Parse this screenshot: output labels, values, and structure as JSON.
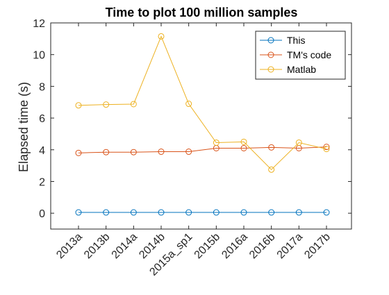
{
  "chart_data": {
    "type": "line",
    "title": "Time to plot 100 million samples",
    "xlabel": "",
    "ylabel": "Elapsed time (s)",
    "categories": [
      "2013a",
      "2013b",
      "2014a",
      "2014b",
      "2015a_sp1",
      "2015b",
      "2016a",
      "2016b",
      "2017a",
      "2017b"
    ],
    "ylim": [
      -1,
      12
    ],
    "yticks": [
      0,
      2,
      4,
      6,
      8,
      10,
      12
    ],
    "grid": false,
    "legend_position": "top-right",
    "series": [
      {
        "name": "This",
        "color": "#0072BD",
        "marker": "circle",
        "values": [
          0.05,
          0.05,
          0.05,
          0.05,
          0.05,
          0.05,
          0.05,
          0.05,
          0.05,
          0.05
        ]
      },
      {
        "name": "TM's code",
        "color": "#D95319",
        "marker": "circle",
        "values": [
          3.8,
          3.85,
          3.85,
          3.88,
          3.88,
          4.1,
          4.1,
          4.15,
          4.1,
          4.18
        ]
      },
      {
        "name": "Matlab",
        "color": "#EDB120",
        "marker": "circle",
        "values": [
          6.8,
          6.85,
          6.88,
          11.15,
          6.9,
          4.45,
          4.5,
          2.75,
          4.45,
          4.05
        ]
      }
    ]
  }
}
